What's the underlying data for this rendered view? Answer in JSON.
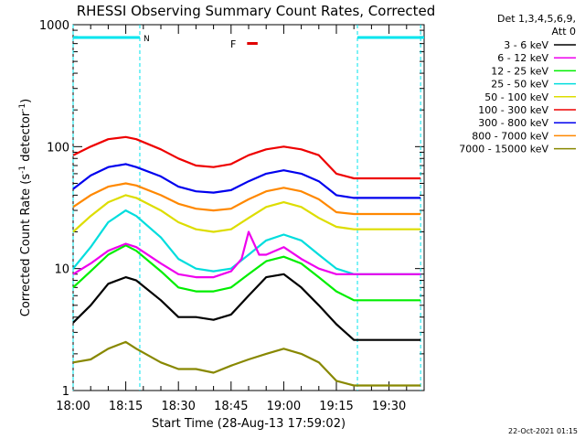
{
  "title": "RHESSI Observing Summary Count Rates, Corrected",
  "detectors_line1": "Det 1,3,4,5,6,9,",
  "detectors_line2": "Att 0",
  "footer_date": "22-Oct-2021 01:15",
  "flags": {
    "night": "N",
    "flare": "F"
  },
  "colors": {
    "night_flag": "#00e5ee",
    "flare_flag": "#e00000"
  },
  "chart_data": {
    "type": "line",
    "title": "RHESSI Observing Summary Count Rates, Corrected",
    "xlabel": "Start Time (28-Aug-13 17:59:02)",
    "ylabel_main": "Corrected Count Rate (s",
    "ylabel_sup1": "-1",
    "ylabel_mid": " detector",
    "ylabel_sup2": "-1",
    "ylabel_end": ")",
    "y_scale": "log",
    "ylim": [
      1,
      1000
    ],
    "xlim_minutes_after_1800": [
      0,
      100
    ],
    "x_ticks": [
      {
        "t": 0,
        "label": "18:00"
      },
      {
        "t": 15,
        "label": "18:15"
      },
      {
        "t": 30,
        "label": "18:30"
      },
      {
        "t": 45,
        "label": "18:45"
      },
      {
        "t": 60,
        "label": "19:00"
      },
      {
        "t": 75,
        "label": "19:15"
      },
      {
        "t": 90,
        "label": "19:30"
      }
    ],
    "y_ticks": [
      {
        "v": 1,
        "label": "1"
      },
      {
        "v": 10,
        "label": "10"
      },
      {
        "v": 100,
        "label": "100"
      },
      {
        "v": 1000,
        "label": "1000"
      }
    ],
    "night_intervals": [
      [
        0,
        19
      ],
      [
        81,
        100
      ]
    ],
    "night_boundaries": [
      0,
      19,
      81,
      99
    ],
    "flare_interval": [
      48,
      51
    ],
    "legend_placement": "right",
    "series": [
      {
        "name": "3 - 6 keV",
        "color": "#000000",
        "x": [
          0,
          5,
          10,
          15,
          18,
          25,
          30,
          35,
          40,
          45,
          50,
          55,
          60,
          65,
          70,
          75,
          80,
          85,
          90,
          95,
          99
        ],
        "values": [
          3.6,
          5,
          7.5,
          8.5,
          8,
          5.5,
          4,
          4,
          3.8,
          4.2,
          6,
          8.5,
          9,
          7,
          5,
          3.5,
          2.6,
          2.6,
          2.6,
          2.6,
          2.6
        ]
      },
      {
        "name": "6 - 12 keV",
        "color": "#ee00ee",
        "x": [
          0,
          5,
          10,
          15,
          18,
          25,
          30,
          35,
          40,
          45,
          48,
          50,
          53,
          55,
          60,
          65,
          70,
          75,
          80,
          85,
          90,
          95,
          99
        ],
        "values": [
          9,
          11,
          14,
          16,
          15,
          11,
          9,
          8.5,
          8.5,
          9.5,
          12,
          20,
          13,
          13,
          15,
          12,
          10,
          9,
          9,
          9,
          9,
          9,
          9
        ]
      },
      {
        "name": "12 - 25 keV",
        "color": "#00ee00",
        "x": [
          0,
          5,
          10,
          15,
          18,
          25,
          30,
          35,
          40,
          45,
          50,
          55,
          60,
          65,
          70,
          75,
          80,
          85,
          90,
          95,
          99
        ],
        "values": [
          7,
          9.5,
          13,
          15.5,
          14,
          9.5,
          7,
          6.5,
          6.5,
          7,
          9,
          11.5,
          12.5,
          11,
          8.5,
          6.5,
          5.5,
          5.5,
          5.5,
          5.5,
          5.5
        ]
      },
      {
        "name": "25 - 50 keV",
        "color": "#00dddd",
        "x": [
          0,
          5,
          10,
          15,
          18,
          25,
          30,
          35,
          40,
          45,
          50,
          55,
          60,
          65,
          70,
          75,
          80,
          85,
          90,
          95,
          99
        ],
        "values": [
          10,
          15,
          24,
          30,
          27,
          18,
          12,
          10,
          9.5,
          10,
          13,
          17,
          19,
          17,
          13,
          10,
          9,
          9,
          9,
          9,
          9
        ]
      },
      {
        "name": "50 - 100 keV",
        "color": "#dddd00",
        "x": [
          0,
          5,
          10,
          15,
          18,
          25,
          30,
          35,
          40,
          45,
          50,
          55,
          60,
          65,
          70,
          75,
          80,
          85,
          90,
          95,
          99
        ],
        "values": [
          20,
          27,
          35,
          40,
          38,
          30,
          24,
          21,
          20,
          21,
          26,
          32,
          35,
          32,
          26,
          22,
          21,
          21,
          21,
          21,
          21
        ]
      },
      {
        "name": "100 - 300 keV",
        "color": "#ee0000",
        "x": [
          0,
          5,
          10,
          15,
          18,
          25,
          30,
          35,
          40,
          45,
          50,
          55,
          60,
          65,
          70,
          75,
          80,
          85,
          90,
          95,
          99
        ],
        "values": [
          85,
          100,
          115,
          120,
          115,
          95,
          80,
          70,
          68,
          72,
          85,
          95,
          100,
          95,
          85,
          60,
          55,
          55,
          55,
          55,
          55
        ]
      },
      {
        "name": "300 - 800 keV",
        "color": "#0000ee",
        "x": [
          0,
          5,
          10,
          15,
          18,
          25,
          30,
          35,
          40,
          45,
          50,
          55,
          60,
          65,
          70,
          75,
          80,
          85,
          90,
          95,
          99
        ],
        "values": [
          45,
          58,
          68,
          72,
          68,
          57,
          47,
          43,
          42,
          44,
          52,
          60,
          64,
          60,
          52,
          40,
          38,
          38,
          38,
          38,
          38
        ]
      },
      {
        "name": "800 - 7000 keV",
        "color": "#ff8800",
        "x": [
          0,
          5,
          10,
          15,
          18,
          25,
          30,
          35,
          40,
          45,
          50,
          55,
          60,
          65,
          70,
          75,
          80,
          85,
          90,
          95,
          99
        ],
        "values": [
          32,
          40,
          47,
          50,
          48,
          40,
          34,
          31,
          30,
          31,
          37,
          43,
          46,
          43,
          37,
          29,
          28,
          28,
          28,
          28,
          28
        ]
      },
      {
        "name": "7000 - 15000 keV",
        "color": "#888800",
        "x": [
          0,
          5,
          10,
          15,
          18,
          25,
          30,
          35,
          40,
          45,
          50,
          55,
          60,
          65,
          70,
          75,
          80,
          85,
          90,
          95,
          99
        ],
        "values": [
          1.7,
          1.8,
          2.2,
          2.5,
          2.2,
          1.7,
          1.5,
          1.5,
          1.4,
          1.6,
          1.8,
          2,
          2.2,
          2,
          1.7,
          1.2,
          1.1,
          1.1,
          1.1,
          1.1,
          1.1
        ]
      }
    ]
  }
}
